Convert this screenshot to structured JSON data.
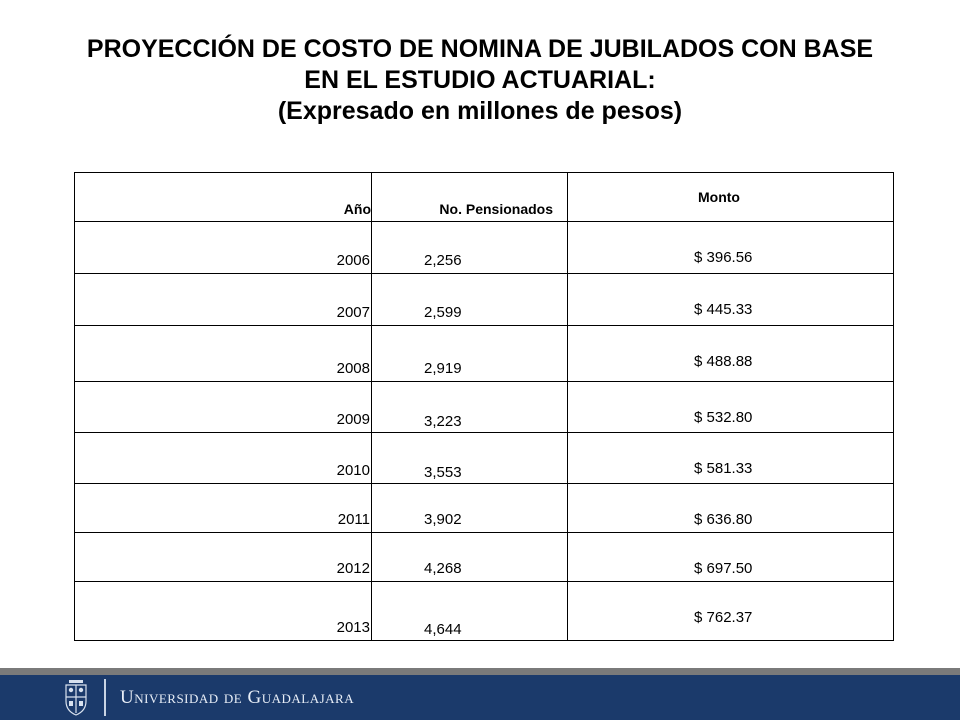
{
  "title": {
    "line1": "PROYECCIÓN DE COSTO DE NOMINA DE JUBILADOS CON BASE",
    "line2": "EN EL ESTUDIO ACTUARIAL:",
    "line3": "(Expresado en millones de pesos)"
  },
  "table": {
    "headers": [
      "Año",
      "No. Pensionados",
      "Monto"
    ],
    "rows": [
      {
        "year": "2006",
        "pensionados": "2,256",
        "monto": "$ 396.56"
      },
      {
        "year": "2007",
        "pensionados": "2,599",
        "monto": "$ 445.33"
      },
      {
        "year": "2008",
        "pensionados": "2,919",
        "monto": "$ 488.88"
      },
      {
        "year": "2009",
        "pensionados": "3,223",
        "monto": "$ 532.80"
      },
      {
        "year": "2010",
        "pensionados": "3,553",
        "monto": "$ 581.33"
      },
      {
        "year": "2011",
        "pensionados": "3,902",
        "monto": "$ 636.80"
      },
      {
        "year": "2012",
        "pensionados": "4,268",
        "monto": "$ 697.50"
      },
      {
        "year": "2013",
        "pensionados": "4,644",
        "monto": "$ 762.37"
      }
    ]
  },
  "footer": {
    "university_name": "Universidad de Guadalajara",
    "seal_icon": "university-seal-icon",
    "background_color": "#1b3a6b",
    "rule_color": "#7a7a7a"
  }
}
